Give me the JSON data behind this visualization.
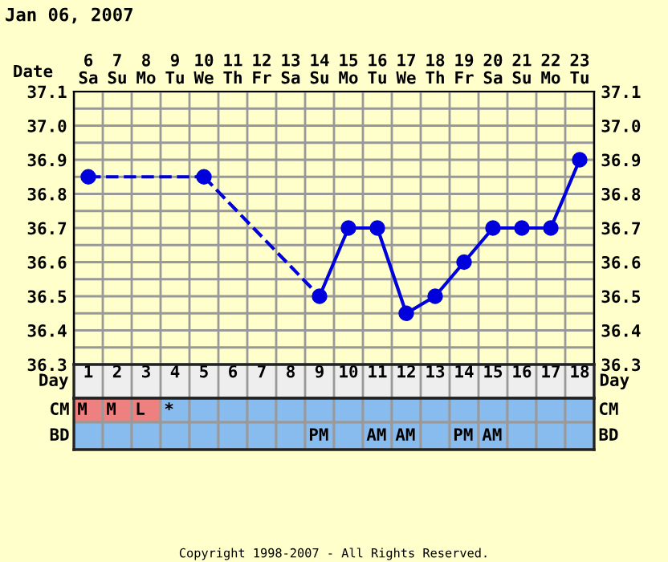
{
  "chart_data": [
    {
      "type": "line",
      "title": "Jan 06, 2007",
      "xlabel": "Date",
      "categories": [
        "6\nSa",
        "7\nSu",
        "8\nMo",
        "9\nTu",
        "10\nWe",
        "11\nTh",
        "12\nFr",
        "13\nSa",
        "14\nSu",
        "15\nMo",
        "16\nTu",
        "17\nWe",
        "18\nTh",
        "19\nFr",
        "20\nSa",
        "21\nSu",
        "22\nMo",
        "23\nTu"
      ],
      "series": [
        {
          "color": "#0000dd",
          "values": [
            36.85,
            null,
            null,
            null,
            36.85,
            null,
            null,
            null,
            36.5,
            36.7,
            36.7,
            36.45,
            36.5,
            36.6,
            36.7,
            36.7,
            36.7,
            36.9
          ]
        }
      ],
      "ylim": [
        36.3,
        37.1
      ],
      "yticks": [
        36.3,
        {
          "value": 36.35,
          "label": null
        },
        36.4,
        {
          "value": 36.45,
          "label": null
        },
        36.5,
        {
          "value": 36.55,
          "label": null
        },
        36.6,
        {
          "value": 36.65,
          "label": null
        },
        36.7,
        {
          "value": 36.75,
          "label": null
        },
        36.8,
        {
          "value": 36.85,
          "label": null
        },
        36.9,
        {
          "value": 36.95,
          "label": null
        },
        {
          "value": 37.0,
          "label": "37.0"
        },
        {
          "value": 37.05,
          "label": null
        },
        37.1
      ],
      "y2lim": [
        36.3,
        37.1
      ],
      "y2ticks": [
        36.3,
        36.4,
        36.5,
        36.6,
        36.7,
        36.8,
        36.9,
        {
          "value": 37.0,
          "label": "37.0"
        },
        37.1
      ],
      "x2label": "Day",
      "x2lim": [
        0.5,
        18.5
      ],
      "x2ticks": [
        1,
        2,
        3,
        4,
        5,
        6,
        7,
        8,
        9,
        10,
        11,
        12,
        13,
        14,
        15,
        16,
        17,
        18
      ],
      "grid": true,
      "marker": "circle",
      "line_style": "solid"
    },
    {
      "type": "other",
      "y_categories": [
        "CM",
        "BD"
      ],
      "y2_categories": [
        "CM",
        "BD"
      ],
      "cell_labels": [
        [
          "M",
          "M",
          "L",
          "*",
          null,
          null,
          null,
          null,
          null,
          null,
          null,
          null,
          null,
          null,
          null,
          null,
          null,
          null
        ],
        [
          null,
          null,
          null,
          null,
          null,
          null,
          null,
          null,
          "PM",
          null,
          "AM",
          "AM",
          null,
          "PM",
          "AM",
          null,
          null,
          null
        ]
      ],
      "colors": [
        [
          "#ee8080",
          "#ee8080",
          "#ee8080",
          "#88bbee",
          "#88bbee",
          "#88bbee",
          "#88bbee",
          "#88bbee",
          "#88bbee",
          "#88bbee",
          "#88bbee",
          "#88bbee",
          "#88bbee",
          "#88bbee",
          "#88bbee",
          "#88bbee",
          "#88bbee",
          "#88bbee"
        ],
        [
          "#88bbee",
          "#88bbee",
          "#88bbee",
          "#88bbee",
          "#88bbee",
          "#88bbee",
          "#88bbee",
          "#88bbee",
          "#88bbee",
          "#88bbee",
          "#88bbee",
          "#88bbee",
          "#88bbee",
          "#88bbee",
          "#88bbee",
          "#88bbee",
          "#88bbee",
          "#88bbee"
        ]
      ],
      "annotations": [
        "Copyright 1998-2007 - All Rights Reserved."
      ]
    }
  ]
}
